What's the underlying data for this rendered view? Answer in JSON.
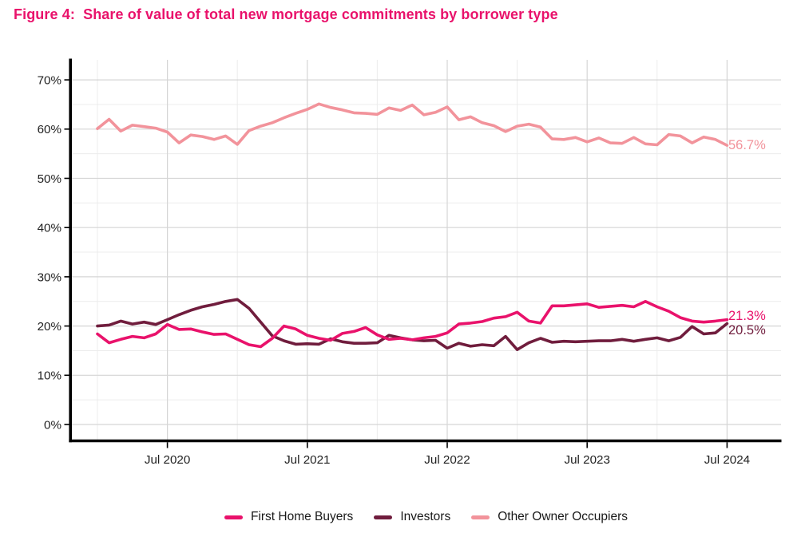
{
  "figure": {
    "title": "Figure 4:  Share of value of total new mortgage commitments by borrower type"
  },
  "chart_data": {
    "type": "line",
    "frequency": "monthly",
    "x_tick_labels": [
      "Jul 2020",
      "Jul 2021",
      "Jul 2022",
      "Jul 2023",
      "Jul 2024"
    ],
    "x_tick_month_index": [
      6,
      18,
      30,
      42,
      54
    ],
    "x_minor_month_index": [
      0,
      12,
      24,
      36,
      48
    ],
    "y_axis": {
      "min": 0,
      "max": 70,
      "major_step": 10,
      "minor_step": 5,
      "tick_labels": [
        "0%",
        "10%",
        "20%",
        "30%",
        "40%",
        "50%",
        "60%",
        "70%"
      ],
      "tick_values": [
        0,
        10,
        20,
        30,
        40,
        50,
        60,
        70
      ]
    },
    "grid": true,
    "legend_position": "bottom",
    "series": [
      {
        "name": "First Home Buyers",
        "color": "#e9126b",
        "end_label": "21.3%",
        "values": [
          18.4,
          16.6,
          17.3,
          17.9,
          17.6,
          18.4,
          20.3,
          19.3,
          19.4,
          18.8,
          18.3,
          18.4,
          17.3,
          16.2,
          15.8,
          17.5,
          20.0,
          19.4,
          18.1,
          17.5,
          17.1,
          18.5,
          18.9,
          19.7,
          18.2,
          17.3,
          17.5,
          17.2,
          17.6,
          17.9,
          18.6,
          20.4,
          20.6,
          20.9,
          21.6,
          21.9,
          22.8,
          21.0,
          20.6,
          24.1,
          24.1,
          24.3,
          24.5,
          23.8,
          24.0,
          24.2,
          23.9,
          25.0,
          23.9,
          23.0,
          21.7,
          21.0,
          20.8,
          21.0,
          21.3
        ]
      },
      {
        "name": "Investors",
        "color": "#701d3d",
        "end_label": "20.5%",
        "values": [
          20.0,
          20.2,
          21.0,
          20.4,
          20.8,
          20.3,
          21.3,
          22.3,
          23.2,
          23.9,
          24.4,
          25.0,
          25.4,
          23.6,
          20.8,
          18.0,
          17.0,
          16.3,
          16.4,
          16.3,
          17.4,
          16.8,
          16.5,
          16.5,
          16.6,
          18.1,
          17.6,
          17.2,
          17.0,
          17.1,
          15.5,
          16.5,
          15.9,
          16.2,
          16.0,
          17.9,
          15.2,
          16.6,
          17.5,
          16.7,
          16.9,
          16.8,
          16.9,
          17.0,
          17.0,
          17.3,
          16.9,
          17.3,
          17.6,
          17.0,
          17.7,
          19.9,
          18.4,
          18.6,
          20.5
        ]
      },
      {
        "name": "Other Owner Occupiers",
        "color": "#f2939b",
        "end_label": "56.7%",
        "values": [
          60.1,
          62.0,
          59.6,
          60.8,
          60.5,
          60.2,
          59.4,
          57.2,
          58.8,
          58.5,
          57.9,
          58.6,
          56.9,
          59.7,
          60.6,
          61.3,
          62.3,
          63.2,
          64.0,
          65.1,
          64.4,
          63.9,
          63.3,
          63.2,
          63.0,
          64.3,
          63.8,
          64.9,
          62.9,
          63.4,
          64.5,
          61.9,
          62.5,
          61.3,
          60.7,
          59.5,
          60.6,
          61.0,
          60.4,
          58.0,
          57.9,
          58.3,
          57.4,
          58.2,
          57.2,
          57.1,
          58.3,
          57.0,
          56.8,
          58.9,
          58.6,
          57.2,
          58.4,
          57.9,
          56.7
        ]
      }
    ]
  },
  "colors": {
    "title": "#e9126b",
    "axis_text": "#1f1f1f",
    "axis_line": "#000000",
    "grid_major": "#d5d5d5",
    "grid_minor": "#ececec",
    "background": "#ffffff"
  }
}
